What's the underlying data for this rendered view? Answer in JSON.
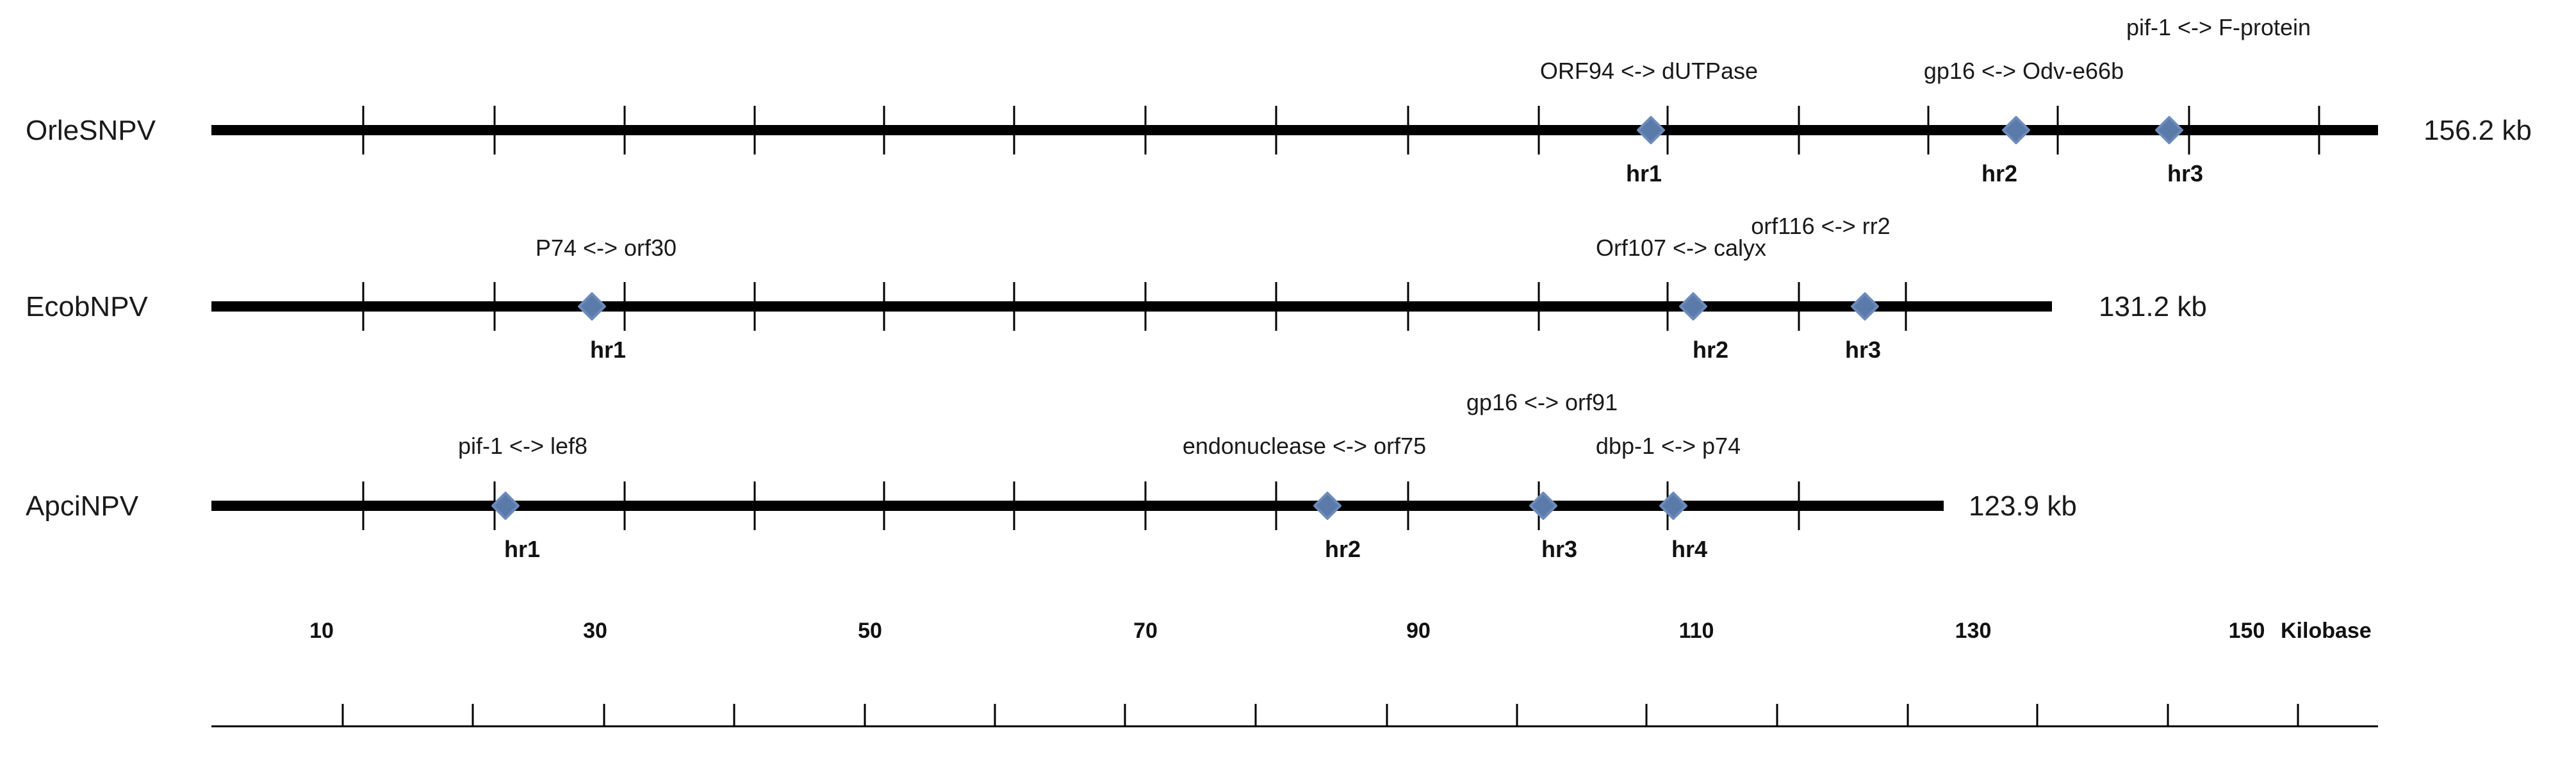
{
  "chart_data": {
    "type": "genome-map",
    "genomes": [
      {
        "name": "OrleSNPV",
        "size_label": "156.2 kb",
        "hrs": [
          {
            "label": "hr1",
            "flank": "ORF94 <-> dUTPase"
          },
          {
            "label": "hr2",
            "flank": "gp16 <-> Odv-e66b"
          },
          {
            "label": "hr3",
            "flank": "pif-1 <-> F-protein"
          }
        ]
      },
      {
        "name": "EcobNPV",
        "size_label": "131.2 kb",
        "hrs": [
          {
            "label": "hr1",
            "flank": "P74 <-> orf30"
          },
          {
            "label": "hr2",
            "flank": "Orf107 <-> calyx"
          },
          {
            "label": "hr3",
            "flank": "orf116 <-> rr2"
          }
        ]
      },
      {
        "name": "ApciNPV",
        "size_label": "123.9 kb",
        "hrs": [
          {
            "label": "hr1",
            "flank": "pif-1 <-> lef8"
          },
          {
            "label": "hr2",
            "flank": "endonuclease <-> orf75"
          },
          {
            "label": "hr3",
            "flank": "gp16 <-> orf91"
          },
          {
            "label": "hr4",
            "flank": "dbp-1 <-> p74"
          }
        ]
      }
    ],
    "scale": {
      "tick_labels": [
        "10",
        "30",
        "50",
        "70",
        "90",
        "110",
        "130",
        "150"
      ],
      "unit_label": "Kilobase"
    }
  }
}
